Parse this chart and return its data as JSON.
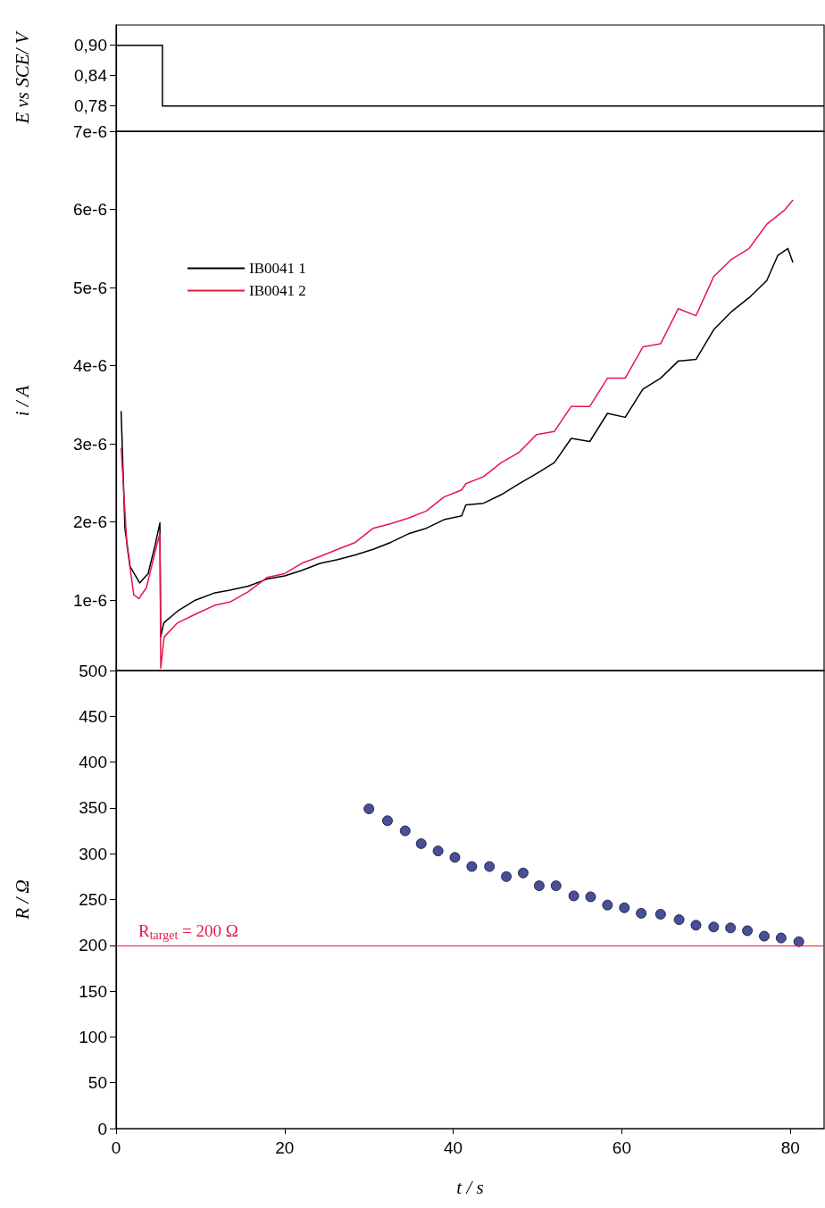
{
  "chart_data": [
    {
      "type": "step",
      "ylabel": "E vs SCE/ V",
      "xlim": [
        0,
        84
      ],
      "xticks": [
        0,
        20,
        40,
        60,
        80
      ],
      "ylim": [
        0.73,
        0.94
      ],
      "yticks": [
        {
          "value": 0.9,
          "label": "0,90"
        },
        {
          "value": 0.84,
          "label": "0,84"
        },
        {
          "value": 0.78,
          "label": "0,78"
        }
      ],
      "tick_labels": "y",
      "grid": false,
      "marker": "none",
      "series": [
        {
          "color": "#000000",
          "x": [
            0,
            5.5,
            84
          ],
          "values": [
            0.9,
            0.78,
            0.78
          ]
        }
      ]
    },
    {
      "type": "line",
      "ylabel": "i / A",
      "xlim": [
        0,
        84
      ],
      "xticks": [
        0,
        20,
        40,
        60,
        80
      ],
      "ylim": [
        1e-07,
        7e-06
      ],
      "yticks": [
        {
          "value": 1e-06,
          "label": "1e-6"
        },
        {
          "value": 2e-06,
          "label": "2e-6"
        },
        {
          "value": 3e-06,
          "label": "3e-6"
        },
        {
          "value": 4e-06,
          "label": "4e-6"
        },
        {
          "value": 5e-06,
          "label": "5e-6"
        },
        {
          "value": 6e-06,
          "label": "6e-6"
        },
        {
          "value": 7e-06,
          "label": "7e-6"
        }
      ],
      "tick_labels": "y",
      "grid": false,
      "marker": "none",
      "legend": "top left",
      "series": [
        {
          "name": "IB0041 1",
          "color": "#000000",
          "x": [
            0.6,
            1.05,
            1.67,
            2.8,
            3.8,
            4.6,
            5.2,
            5.3,
            5.66,
            7.3,
            9.4,
            11.6,
            13.6,
            15.7,
            17.9,
            20,
            22,
            24.2,
            26.3,
            28.4,
            30.5,
            32.6,
            34.7,
            36.8,
            38.9,
            41,
            41.5,
            43.6,
            45.7,
            47.8,
            49.9,
            52,
            54,
            56.2,
            58.3,
            60.4,
            62.5,
            64.6,
            66.7,
            68.8,
            70.9,
            73,
            75.1,
            77.2,
            78.5,
            79.7,
            80.3
          ],
          "values": [
            3.42e-06,
            1.92e-06,
            1.43e-06,
            1.22e-06,
            1.34e-06,
            1.69e-06,
            1.99e-06,
            5.3e-07,
            7.1e-07,
            8.6e-07,
            1e-06,
            1.09e-06,
            1.13e-06,
            1.18e-06,
            1.27e-06,
            1.31e-06,
            1.38e-06,
            1.47e-06,
            1.52e-06,
            1.58e-06,
            1.65e-06,
            1.74e-06,
            1.85e-06,
            1.92e-06,
            2.03e-06,
            2.08e-06,
            2.22e-06,
            2.24e-06,
            2.35e-06,
            2.49e-06,
            2.62e-06,
            2.76e-06,
            3.07e-06,
            3.03e-06,
            3.39e-06,
            3.34e-06,
            3.7e-06,
            3.84e-06,
            4.06e-06,
            4.08e-06,
            4.46e-06,
            4.69e-06,
            4.87e-06,
            5.09e-06,
            5.41e-06,
            5.5e-06,
            5.32e-06
          ]
        },
        {
          "name": "IB0041 2",
          "color": "#e8174a",
          "x": [
            0.6,
            1.3,
            2.1,
            2.7,
            3.6,
            4.8,
            5.2,
            5.3,
            5.7,
            7.3,
            9.4,
            11.6,
            13.6,
            15.7,
            17.9,
            20,
            22,
            24.2,
            26.3,
            28.4,
            30.5,
            32.6,
            34.7,
            36.8,
            38.9,
            41,
            41.5,
            43.6,
            45.7,
            47.8,
            49.9,
            52,
            54,
            56.2,
            58.3,
            60.4,
            62.5,
            64.6,
            66.7,
            68.8,
            70.9,
            73,
            75.1,
            77.2,
            79.3,
            80.3
          ],
          "values": [
            2.95e-06,
            1.69e-06,
            1.07e-06,
            1.02e-06,
            1.16e-06,
            1.69e-06,
            1.85e-06,
            1.3e-07,
            5.3e-07,
            7.1e-07,
            8.2e-07,
            9.3e-07,
            9.8e-07,
            1.11e-06,
            1.29e-06,
            1.34e-06,
            1.47e-06,
            1.56e-06,
            1.65e-06,
            1.74e-06,
            1.92e-06,
            1.98e-06,
            2.05e-06,
            2.14e-06,
            2.32e-06,
            2.41e-06,
            2.49e-06,
            2.58e-06,
            2.76e-06,
            2.89e-06,
            3.12e-06,
            3.16e-06,
            3.48e-06,
            3.48e-06,
            3.84e-06,
            3.84e-06,
            4.24e-06,
            4.28e-06,
            4.73e-06,
            4.64e-06,
            5.14e-06,
            5.36e-06,
            5.5e-06,
            5.81e-06,
            5.99e-06,
            6.12e-06
          ]
        }
      ]
    },
    {
      "type": "scatter",
      "xlabel": "t / s",
      "ylabel": "R / Ω",
      "xlim": [
        0,
        84
      ],
      "xticks": [
        0,
        20,
        40,
        60,
        80
      ],
      "ylim": [
        0,
        500
      ],
      "yticks": [
        0,
        50,
        100,
        150,
        200,
        250,
        300,
        350,
        400,
        450,
        500
      ],
      "grid": false,
      "marker": "circle",
      "ref_lines": [
        {
          "axis": "y",
          "value": 200,
          "label": "R$_{target}$ = 200 Ω",
          "color": "#e8174a"
        }
      ],
      "series": [
        {
          "color": "#1a237e",
          "x": [
            30.0,
            32.2,
            34.3,
            36.2,
            38.2,
            40.2,
            42.2,
            44.3,
            46.3,
            48.3,
            50.2,
            52.2,
            54.3,
            56.3,
            58.3,
            60.3,
            62.3,
            64.6,
            66.8,
            68.8,
            70.9,
            72.9,
            74.9,
            76.9,
            78.9,
            81.0
          ],
          "values": [
            349,
            336,
            325,
            311,
            303,
            296,
            286,
            286,
            275,
            279,
            265,
            265,
            254,
            253,
            244,
            241,
            235,
            234,
            228,
            222,
            220,
            219,
            216,
            210,
            208,
            204
          ]
        }
      ]
    }
  ]
}
